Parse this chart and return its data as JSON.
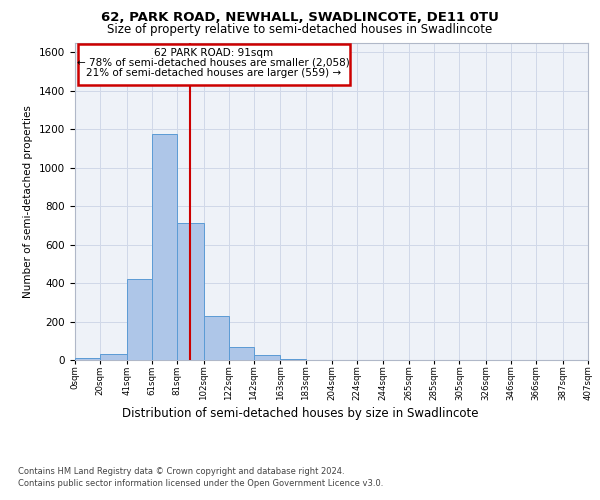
{
  "title1": "62, PARK ROAD, NEWHALL, SWADLINCOTE, DE11 0TU",
  "title2": "Size of property relative to semi-detached houses in Swadlincote",
  "xlabel": "Distribution of semi-detached houses by size in Swadlincote",
  "ylabel": "Number of semi-detached properties",
  "footer1": "Contains HM Land Registry data © Crown copyright and database right 2024.",
  "footer2": "Contains public sector information licensed under the Open Government Licence v3.0.",
  "annotation_title": "62 PARK ROAD: 91sqm",
  "annotation_line1": "← 78% of semi-detached houses are smaller (2,058)",
  "annotation_line2": "21% of semi-detached houses are larger (559) →",
  "property_size": 91,
  "bar_edges": [
    0,
    20,
    41,
    61,
    81,
    102,
    122,
    142,
    163,
    183,
    204,
    224,
    244,
    265,
    285,
    305,
    326,
    346,
    366,
    387,
    407
  ],
  "bar_heights": [
    10,
    30,
    420,
    1175,
    710,
    230,
    65,
    25,
    5,
    0,
    0,
    0,
    0,
    0,
    0,
    0,
    0,
    0,
    0,
    0
  ],
  "bar_color": "#aec6e8",
  "bar_edge_color": "#5b9bd5",
  "grid_color": "#d0d8e8",
  "vline_color": "#cc0000",
  "bg_color": "#eef2f8",
  "ylim": [
    0,
    1650
  ],
  "yticks": [
    0,
    200,
    400,
    600,
    800,
    1000,
    1200,
    1400,
    1600
  ],
  "xtick_labels": [
    "0sqm",
    "20sqm",
    "41sqm",
    "61sqm",
    "81sqm",
    "102sqm",
    "122sqm",
    "142sqm",
    "163sqm",
    "183sqm",
    "204sqm",
    "224sqm",
    "244sqm",
    "265sqm",
    "285sqm",
    "305sqm",
    "326sqm",
    "346sqm",
    "366sqm",
    "387sqm",
    "407sqm"
  ],
  "title1_fontsize": 9.5,
  "title2_fontsize": 8.5,
  "ylabel_fontsize": 7.5,
  "xlabel_fontsize": 8.5,
  "footer_fontsize": 6.0,
  "ann_fontsize": 7.5
}
